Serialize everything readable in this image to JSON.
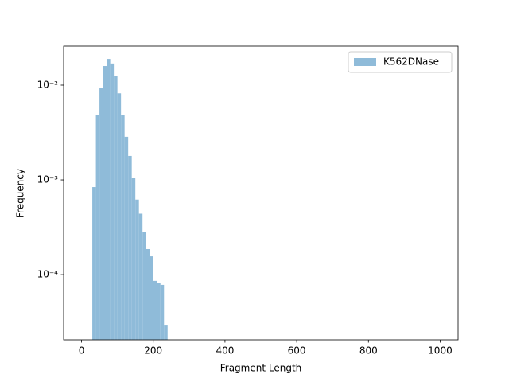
{
  "chart_data": {
    "type": "histogram",
    "xlabel": "Fragment Length",
    "ylabel": "Frequency",
    "bins": [
      30,
      40,
      50,
      60,
      70,
      80,
      90,
      100,
      110,
      120,
      130,
      140,
      150,
      160,
      170,
      180,
      190,
      200,
      210,
      220,
      230,
      240
    ],
    "series": [
      {
        "name": "K562DNase",
        "color": "#8fbbd9",
        "values": [
          0.00084,
          0.0048,
          0.00925,
          0.0159,
          0.0189,
          0.0169,
          0.0124,
          0.0082,
          0.0048,
          0.00285,
          0.00179,
          0.00104,
          0.00062,
          0.00044,
          0.00028,
          0.000186,
          0.000156,
          8.6e-05,
          8.2e-05,
          7.8e-05,
          2.9e-05
        ]
      }
    ],
    "xlim": [
      -50,
      1050
    ],
    "xticks": [
      0,
      200,
      400,
      600,
      800,
      1000
    ],
    "ylim": [
      2.05e-05,
      0.0258
    ],
    "log_y": true,
    "yticks": [
      {
        "value": 0.0001,
        "label": "10⁻⁴"
      },
      {
        "value": 0.001,
        "label": "10⁻³"
      },
      {
        "value": 0.01,
        "label": "10⁻²"
      }
    ],
    "legend": "upper right"
  }
}
